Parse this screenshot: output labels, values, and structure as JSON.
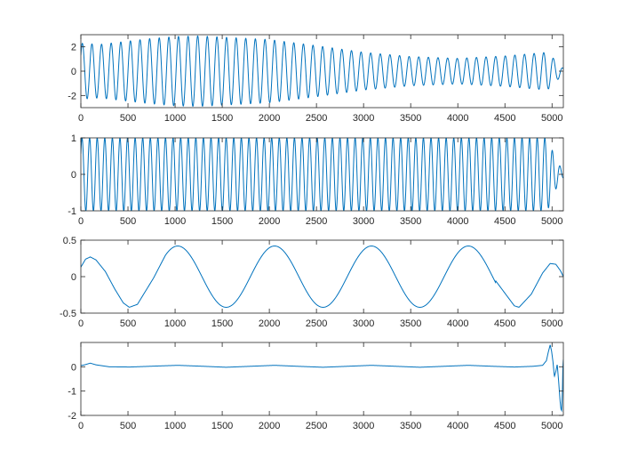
{
  "figure": {
    "background": "#ffffff",
    "axes_color": "#262626",
    "line_color": "#0072bd"
  },
  "chart_data": [
    {
      "type": "line",
      "name": "",
      "xlim": [
        0,
        5120
      ],
      "ylim": [
        -3,
        3
      ],
      "xticks": [
        0,
        500,
        1000,
        1500,
        2000,
        2500,
        3000,
        3500,
        4000,
        4500,
        5000
      ],
      "xtick_labels": [
        "0",
        "500",
        "1000",
        "1500",
        "2000",
        "2500",
        "3000",
        "3500",
        "4000",
        "4500",
        "5000"
      ],
      "yticks": [
        -2,
        0,
        2
      ],
      "ytick_labels": [
        "-2",
        "0",
        "2"
      ],
      "signal": {
        "form": "amplitude-modulated sinusoid",
        "period": 102,
        "envelope_x": [
          0,
          200,
          700,
          1000,
          1250,
          1500,
          2000,
          2500,
          3000,
          3500,
          4000,
          4500,
          4950,
          5060,
          5120
        ],
        "envelope_y": [
          2.3,
          2.2,
          2.65,
          2.85,
          2.9,
          2.8,
          2.6,
          2.1,
          1.55,
          1.2,
          1.05,
          1.25,
          1.55,
          0.7,
          0.2
        ]
      }
    },
    {
      "type": "line",
      "name": "",
      "xlim": [
        0,
        5120
      ],
      "ylim": [
        -1,
        1
      ],
      "xticks": [
        0,
        500,
        1000,
        1500,
        2000,
        2500,
        3000,
        3500,
        4000,
        4500,
        5000
      ],
      "xtick_labels": [
        "0",
        "500",
        "1000",
        "1500",
        "2000",
        "2500",
        "3000",
        "3500",
        "4000",
        "4500",
        "5000"
      ],
      "yticks": [
        -1,
        0,
        1
      ],
      "ytick_labels": [
        "-1",
        "0",
        "1"
      ],
      "signal": {
        "form": "unit sinusoid",
        "period": 80.5,
        "envelope_x": [
          0,
          4950,
          5050,
          5120
        ],
        "envelope_y": [
          1.0,
          1.0,
          0.35,
          0.1
        ]
      }
    },
    {
      "type": "line",
      "name": "",
      "xlim": [
        0,
        5120
      ],
      "ylim": [
        -0.5,
        0.5
      ],
      "xticks": [
        0,
        500,
        1000,
        1500,
        2000,
        2500,
        3000,
        3500,
        4000,
        4500,
        5000
      ],
      "xtick_labels": [
        "0",
        "500",
        "1000",
        "1500",
        "2000",
        "2500",
        "3000",
        "3500",
        "4000",
        "4500",
        "5000"
      ],
      "yticks": [
        -0.5,
        0,
        0.5
      ],
      "ytick_labels": [
        "-0.5",
        "0",
        "0.5"
      ],
      "signal": {
        "form": "slow sinusoid",
        "period": 1028,
        "peak_x": 1028,
        "amplitude": 0.42,
        "points": [
          [
            0,
            0.13
          ],
          [
            50,
            0.24
          ],
          [
            100,
            0.27
          ],
          [
            160,
            0.23
          ],
          [
            260,
            0.07
          ],
          [
            360,
            -0.17
          ],
          [
            450,
            -0.36
          ],
          [
            514,
            -0.42
          ],
          [
            600,
            -0.38
          ],
          [
            771,
            -0.02
          ],
          [
            900,
            0.3
          ],
          [
            1028,
            0.42
          ],
          [
            1200,
            0.27
          ],
          [
            1285,
            -0.01
          ],
          [
            1542,
            -0.42
          ],
          [
            1799,
            0.0
          ],
          [
            2056,
            0.42
          ],
          [
            2313,
            0.0
          ],
          [
            2570,
            -0.42
          ],
          [
            2827,
            0.0
          ],
          [
            3084,
            0.42
          ],
          [
            3341,
            0.0
          ],
          [
            3598,
            -0.42
          ],
          [
            3855,
            0.0
          ],
          [
            4112,
            0.42
          ],
          [
            4369,
            0.0
          ],
          [
            4600,
            -0.4
          ],
          [
            4650,
            -0.42
          ],
          [
            4780,
            -0.24
          ],
          [
            4900,
            0.05
          ],
          [
            4980,
            0.18
          ],
          [
            5040,
            0.17
          ],
          [
            5090,
            0.08
          ],
          [
            5120,
            0.0
          ]
        ]
      }
    },
    {
      "type": "line",
      "name": "",
      "xlim": [
        0,
        5120
      ],
      "ylim": [
        -2,
        1
      ],
      "xticks": [
        0,
        500,
        1000,
        1500,
        2000,
        2500,
        3000,
        3500,
        4000,
        4500,
        5000
      ],
      "xtick_labels": [
        "0",
        "500",
        "1000",
        "1500",
        "2000",
        "2500",
        "3000",
        "3500",
        "4000",
        "4500",
        "5000"
      ],
      "yticks": [
        -2,
        -1,
        0
      ],
      "ytick_labels": [
        "-2",
        "-1",
        "0"
      ],
      "signal": {
        "form": "residual",
        "points": [
          [
            0,
            0.05
          ],
          [
            40,
            0.08
          ],
          [
            100,
            0.15
          ],
          [
            160,
            0.08
          ],
          [
            300,
            0.0
          ],
          [
            520,
            -0.01
          ],
          [
            800,
            0.03
          ],
          [
            1028,
            0.06
          ],
          [
            1300,
            0.02
          ],
          [
            1542,
            -0.02
          ],
          [
            1800,
            0.02
          ],
          [
            2056,
            0.06
          ],
          [
            2300,
            0.02
          ],
          [
            2570,
            -0.02
          ],
          [
            2827,
            0.02
          ],
          [
            3084,
            0.06
          ],
          [
            3341,
            0.02
          ],
          [
            3598,
            -0.02
          ],
          [
            3855,
            0.02
          ],
          [
            4112,
            0.06
          ],
          [
            4369,
            0.02
          ],
          [
            4600,
            -0.01
          ],
          [
            4800,
            0.02
          ],
          [
            4900,
            0.06
          ],
          [
            4940,
            0.25
          ],
          [
            4960,
            0.6
          ],
          [
            4980,
            0.9
          ],
          [
            4995,
            0.65
          ],
          [
            5010,
            0.2
          ],
          [
            5025,
            -0.4
          ],
          [
            5040,
            -0.2
          ],
          [
            5055,
            0.1
          ],
          [
            5070,
            -0.6
          ],
          [
            5085,
            -1.4
          ],
          [
            5095,
            -1.75
          ],
          [
            5102,
            -1.8
          ],
          [
            5110,
            -1.0
          ],
          [
            5115,
            0.0
          ],
          [
            5120,
            0.3
          ]
        ]
      }
    }
  ]
}
